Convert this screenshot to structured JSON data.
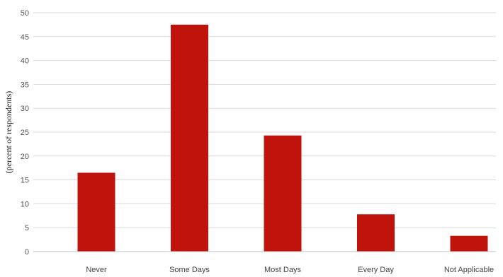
{
  "chart_data": {
    "type": "bar",
    "title": "",
    "xlabel": "",
    "ylabel": "(percent of respondents)",
    "categories": [
      "Never",
      "Some Days",
      "Most Days",
      "Every Day",
      "Not Applicable"
    ],
    "values": [
      16.5,
      47.5,
      24.3,
      7.8,
      3.3
    ],
    "ylim": [
      0,
      50
    ],
    "yticks": [
      "0",
      "5",
      "10",
      "15",
      "20",
      "25",
      "30",
      "35",
      "40",
      "45",
      "50"
    ],
    "grid": true,
    "legend": "none",
    "colors": {
      "bar": "#c0130b",
      "grid": "#d9d9d9",
      "axis": "#bfbfbf"
    }
  }
}
